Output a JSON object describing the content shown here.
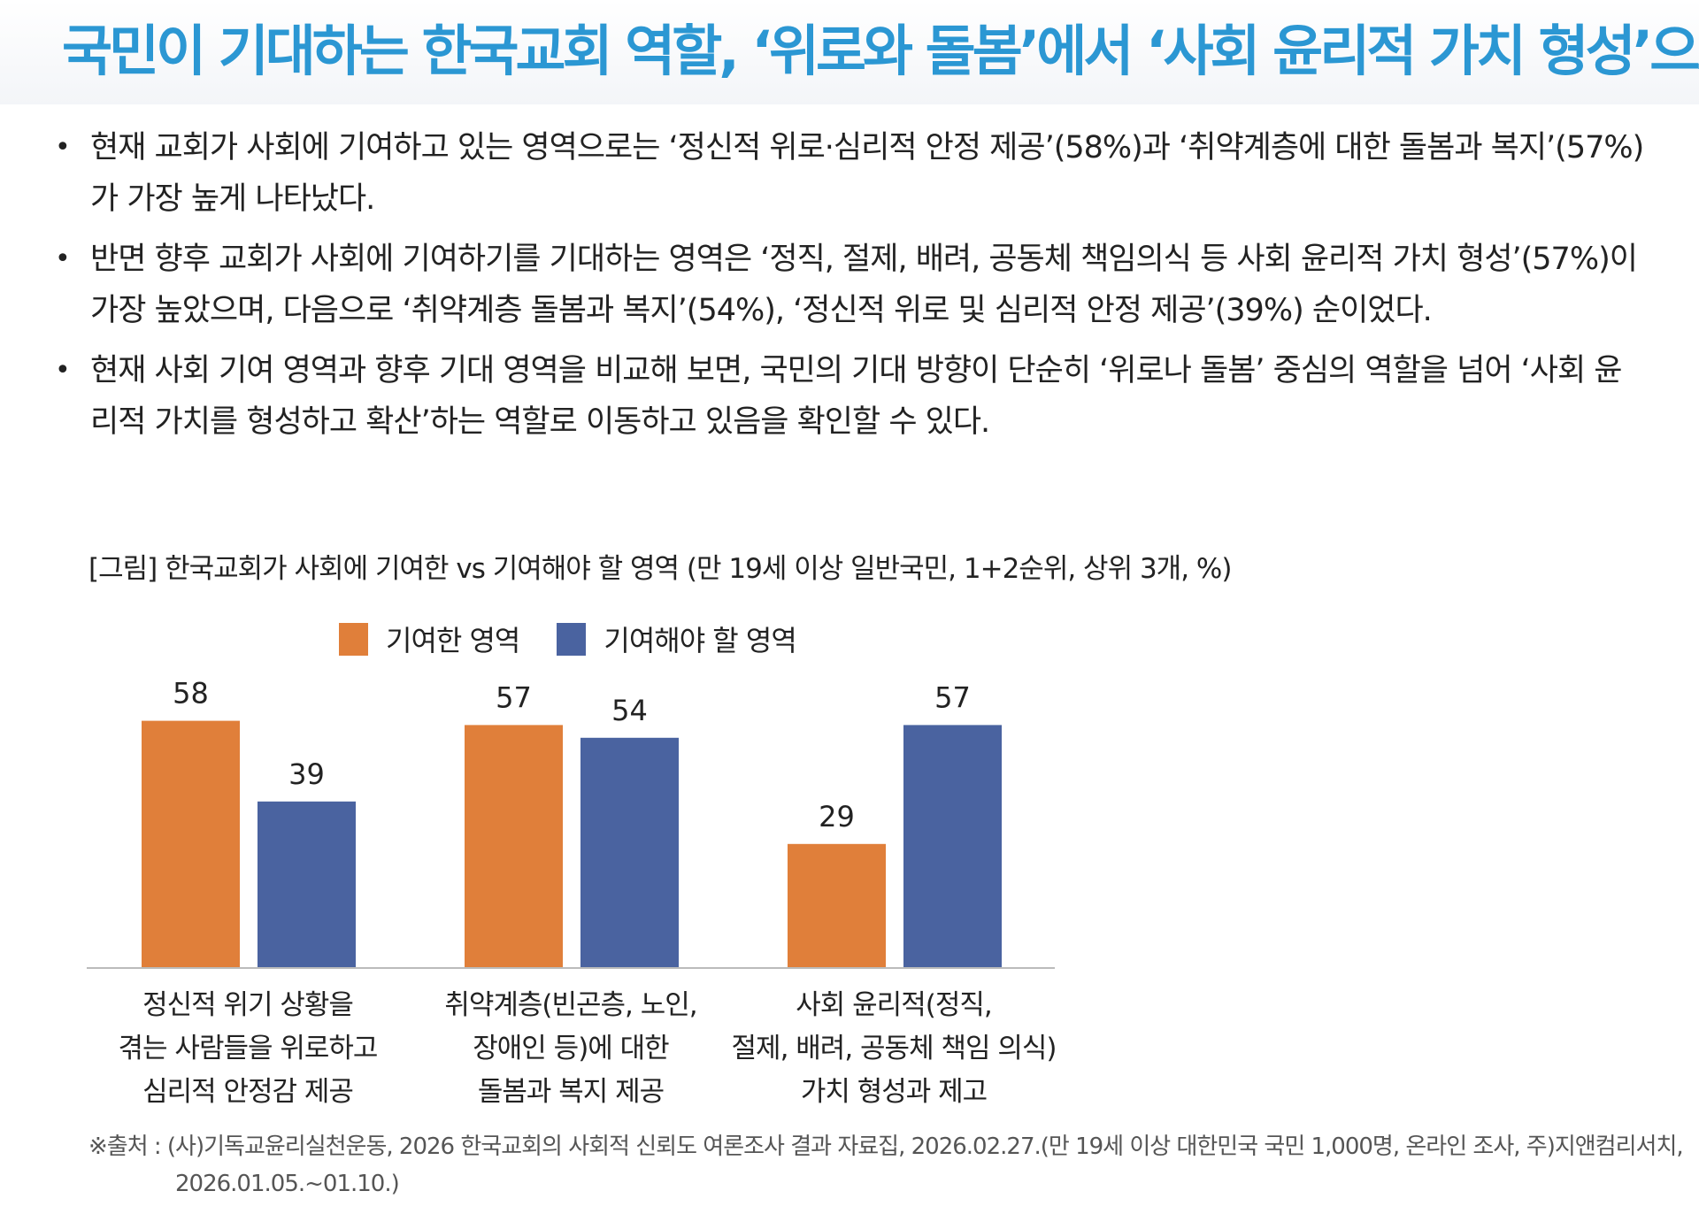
{
  "title": "국민이 기대하는 한국교회 역할, ‘위로와 돌봄’에서 ‘사회 윤리적 가치 형성’으로!",
  "bullet_marker": "•",
  "bullets": [
    "현재 교회가 사회에 기여하고 있는 영역으로는 ‘정신적 위로·심리적 안정 제공’(58%)과 ‘취약계층에 대한 돌봄과 복지’(57%)가 가장 높게 나타났다.",
    "반면 향후 교회가 사회에 기여하기를 기대하는 영역은 ‘정직, 절제, 배려, 공동체 책임의식 등 사회 윤리적 가치 형성’(57%)이 가장 높았으며, 다음으로 ‘취약계층 돌봄과 복지’(54%), ‘정신적 위로 및 심리적 안정 제공’(39%) 순이었다.",
    "현재 사회 기여 영역과 향후 기대 영역을 비교해 보면, 국민의 기대 방향이 단순히 ‘위로나 돌봄’ 중심의 역할을 넘어 ‘사회 윤리적 가치를 형성하고 확산’하는 역할로 이동하고 있음을 확인할 수 있다."
  ],
  "figure_caption": "[그림] 한국교회가 사회에 기여한 vs 기여해야 할 영역 (만 19세 이상 일반국민, 1+2순위, 상위 3개, %)",
  "colors": {
    "title": "#2b97d3",
    "series1": "#e07f3a",
    "series2": "#4a63a0",
    "axis": "#bbbbbb"
  },
  "chart_data": {
    "type": "bar",
    "categories": [
      "정신적 위기 상황을\n겪는 사람들을 위로하고\n심리적 안정감 제공",
      "취약계층(빈곤층, 노인,\n장애인 등)에 대한\n돌봄과 복지 제공",
      "사회 윤리적(정직,\n절제, 배려, 공동체 책임 의식)\n가치 형성과 제고"
    ],
    "series": [
      {
        "name": "기여한 영역",
        "values": [
          58,
          57,
          29
        ]
      },
      {
        "name": "기여해야 할 영역",
        "values": [
          39,
          54,
          57
        ]
      }
    ],
    "legend_position": "top",
    "data_labels": true,
    "grid": false
  },
  "source": "※출처 : (사)기독교윤리실천운동, 2026 한국교회의 사회적 신뢰도 여론조사 결과 자료집, 2026.02.27.(만 19세 이상 대한민국 국민 1,000명, 온라인 조사, 주)지앤컴리서치, 2026.01.05.~01.10.)"
}
